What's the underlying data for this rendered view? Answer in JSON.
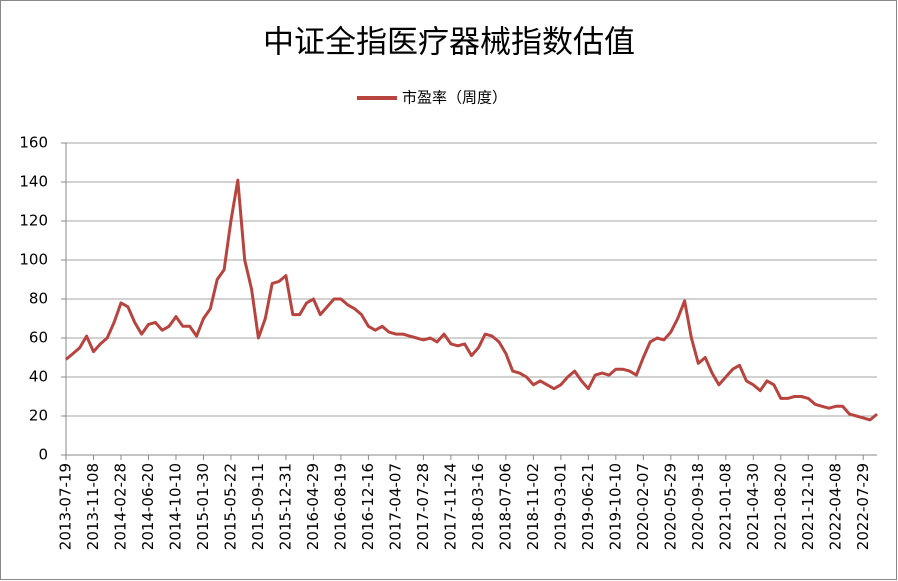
{
  "chart_data": {
    "type": "line",
    "title": "中证全指医疗器械指数估值",
    "categories": [
      "2013-07-19",
      null,
      null,
      null,
      "2013-11-08",
      null,
      null,
      null,
      "2014-02-28",
      null,
      null,
      null,
      "2014-06-20",
      null,
      null,
      null,
      "2014-10-10",
      null,
      null,
      null,
      "2015-01-30",
      null,
      null,
      null,
      "2015-05-22",
      null,
      null,
      null,
      "2015-09-11",
      null,
      null,
      null,
      "2015-12-31",
      null,
      null,
      null,
      "2016-04-29",
      null,
      null,
      null,
      "2016-08-19",
      null,
      null,
      null,
      "2016-12-16",
      null,
      null,
      null,
      "2017-04-07",
      null,
      null,
      null,
      "2017-07-28",
      null,
      null,
      null,
      "2017-11-24",
      null,
      null,
      null,
      "2018-03-16",
      null,
      null,
      null,
      "2018-07-06",
      null,
      null,
      null,
      "2018-11-02",
      null,
      null,
      null,
      "2019-03-01",
      null,
      null,
      null,
      "2019-06-21",
      null,
      null,
      null,
      "2019-10-10",
      null,
      null,
      null,
      "2020-02-07",
      null,
      null,
      null,
      "2020-05-29",
      null,
      null,
      null,
      "2020-09-18",
      null,
      null,
      null,
      "2021-01-08",
      null,
      null,
      null,
      "2021-04-30",
      null,
      null,
      null,
      "2021-08-20",
      null,
      null,
      null,
      "2021-12-10",
      null,
      null,
      null,
      "2022-04-08",
      null,
      null,
      null,
      "2022-07-29",
      null,
      null
    ],
    "series": [
      {
        "name": "市盈率（周度）",
        "color": "#b8443f",
        "values": [
          49,
          52,
          55,
          61,
          53,
          57,
          60,
          68,
          78,
          76,
          68,
          62,
          67,
          68,
          64,
          66,
          71,
          66,
          66,
          61,
          70,
          75,
          90,
          95,
          120,
          141,
          100,
          85,
          60,
          70,
          88,
          89,
          92,
          72,
          72,
          78,
          80,
          72,
          76,
          80,
          80,
          77,
          75,
          72,
          66,
          64,
          66,
          63,
          62,
          62,
          61,
          60,
          59,
          60,
          58,
          62,
          57,
          56,
          57,
          51,
          55,
          62,
          61,
          58,
          52,
          43,
          42,
          40,
          36,
          38,
          36,
          34,
          36,
          40,
          43,
          38,
          34,
          41,
          42,
          41,
          44,
          44,
          43,
          41,
          50,
          58,
          60,
          59,
          63,
          70,
          79,
          60,
          47,
          50,
          42,
          36,
          40,
          44,
          46,
          38,
          36,
          33,
          38,
          36,
          29,
          29,
          30,
          30,
          29,
          26,
          25,
          24,
          25,
          25,
          21,
          20,
          19,
          18,
          21
        ]
      }
    ],
    "ylim": [
      0,
      160
    ],
    "yticks": [
      0,
      20,
      40,
      60,
      80,
      100,
      120,
      140,
      160
    ],
    "grid": true,
    "legend": "top"
  }
}
